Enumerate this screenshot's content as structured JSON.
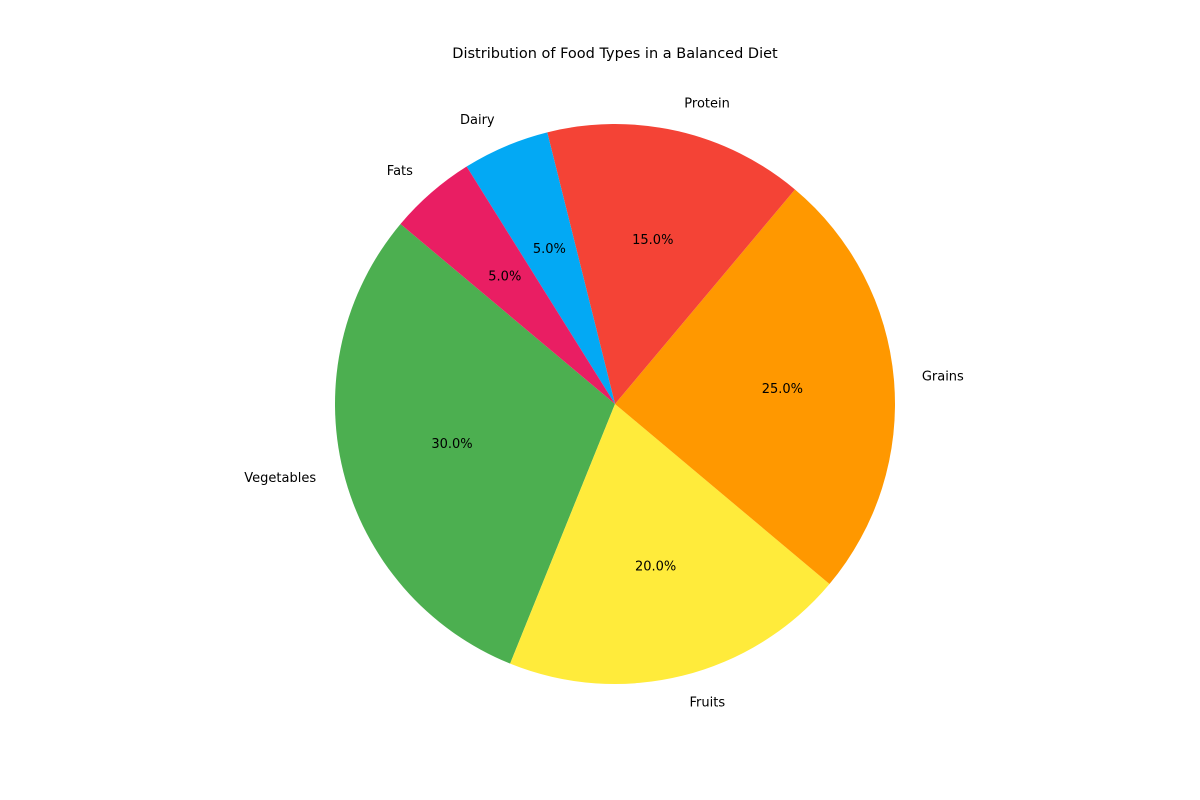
{
  "chart_data": {
    "type": "pie",
    "title": "Distribution of Food Types in a Balanced Diet",
    "start_angle_deg": 140,
    "direction": "counterclockwise",
    "label_format": "{v}.0%",
    "slices": [
      {
        "label": "Vegetables",
        "value": 30,
        "pct_label": "30.0%",
        "color": "#4CAF50"
      },
      {
        "label": "Fruits",
        "value": 20,
        "pct_label": "20.0%",
        "color": "#FFEB3B"
      },
      {
        "label": "Grains",
        "value": 25,
        "pct_label": "25.0%",
        "color": "#FF9800"
      },
      {
        "label": "Protein",
        "value": 15,
        "pct_label": "15.0%",
        "color": "#F44336"
      },
      {
        "label": "Dairy",
        "value": 5,
        "pct_label": "5.0%",
        "color": "#03A9F4"
      },
      {
        "label": "Fats",
        "value": 5,
        "pct_label": "5.0%",
        "color": "#E91E63"
      }
    ]
  }
}
